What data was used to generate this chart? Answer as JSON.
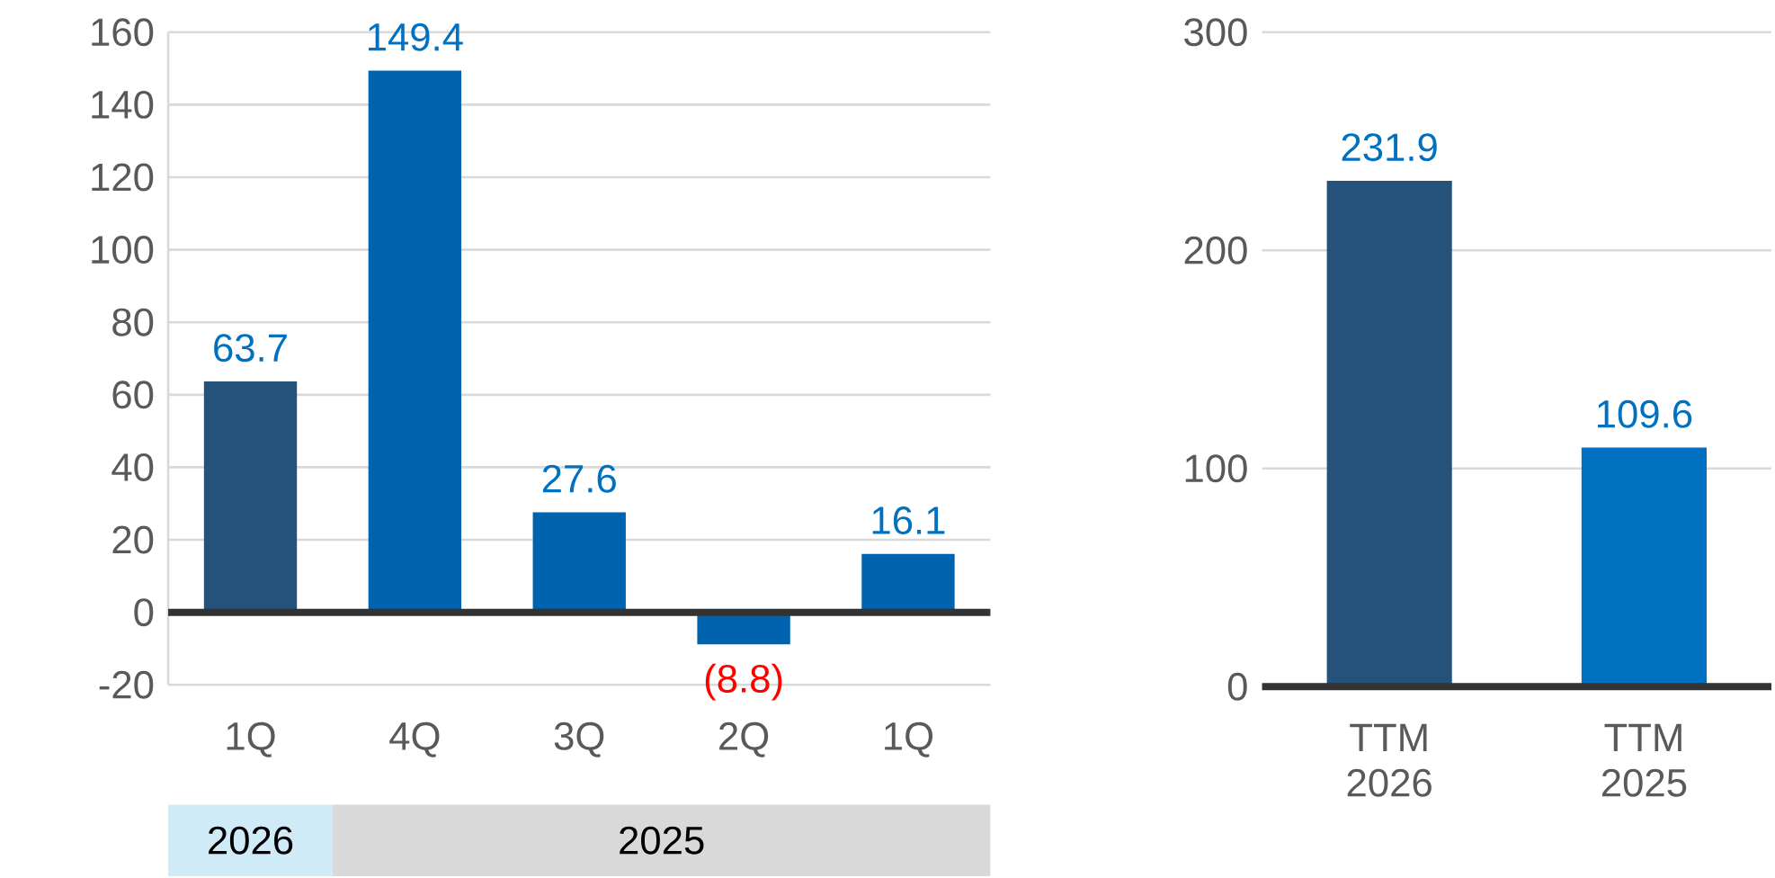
{
  "chart_data": [
    {
      "type": "bar",
      "categories": [
        "1Q",
        "4Q",
        "3Q",
        "2Q",
        "1Q"
      ],
      "values": [
        63.7,
        149.4,
        27.6,
        -8.8,
        16.1
      ],
      "colors": [
        "#24527a",
        "#0063b0",
        "#0063b0",
        "#0063b0",
        "#0063b0"
      ],
      "value_labels": [
        "63.7",
        "149.4",
        "27.6",
        "(8.8)",
        "16.1"
      ],
      "ylim": [
        -20,
        160
      ],
      "yticks": [
        -20,
        0,
        20,
        40,
        60,
        80,
        100,
        120,
        140,
        160
      ],
      "grid": "y",
      "annotations": [
        "2026",
        "2025"
      ]
    },
    {
      "type": "bar",
      "categories": [
        "TTM 2026",
        "TTM 2025"
      ],
      "values": [
        231.9,
        109.6
      ],
      "colors": [
        "#24527a",
        "#0070c0"
      ],
      "value_labels": [
        "231.9",
        "109.6"
      ],
      "ylim": [
        0,
        300
      ],
      "yticks": [
        0,
        100,
        200,
        300
      ],
      "grid": "y"
    }
  ]
}
